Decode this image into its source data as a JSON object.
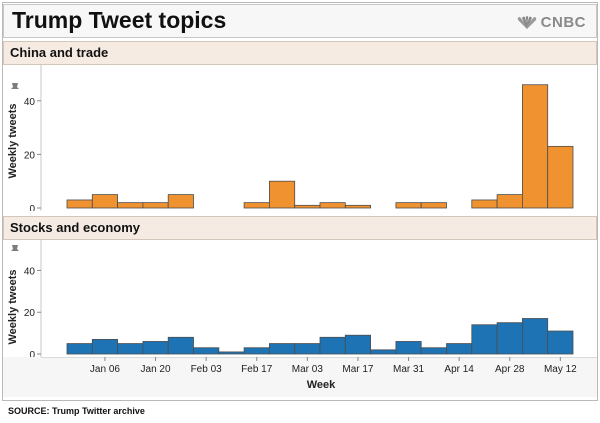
{
  "title": "Trump Tweet topics",
  "brand": "CNBC",
  "source": "SOURCE: Trump Twitter archive",
  "colors": {
    "china": "#f09230",
    "stocks": "#1d73b3",
    "bar_edge": "#4d4d4d"
  },
  "icons": {
    "logo": "peacock-icon",
    "pin": "pushpin-icon"
  },
  "chart_data": [
    {
      "type": "bar",
      "title": "China and trade",
      "xlabel": "Week",
      "ylabel": "Weekly tweets",
      "ylim": [
        0,
        50
      ],
      "yticks": [
        0,
        20,
        40
      ],
      "x_start": "Dec 30",
      "week_tick_labels": [
        "Jan 06",
        "Jan 20",
        "Feb 03",
        "Feb 17",
        "Mar 03",
        "Mar 17",
        "Mar 31",
        "Apr 14",
        "Apr 28",
        "May 12"
      ],
      "values": [
        3,
        5,
        2,
        2,
        5,
        0,
        0,
        2,
        10,
        1,
        2,
        1,
        0,
        2,
        2,
        0,
        3,
        5,
        46,
        23
      ],
      "color": "#f09230"
    },
    {
      "type": "bar",
      "title": "Stocks and economy",
      "xlabel": "Week",
      "ylabel": "Weekly tweets",
      "ylim": [
        0,
        45
      ],
      "yticks": [
        0,
        20,
        40
      ],
      "x_start": "Dec 30",
      "week_tick_labels": [
        "Jan 06",
        "Jan 20",
        "Feb 03",
        "Feb 17",
        "Mar 03",
        "Mar 17",
        "Mar 31",
        "Apr 14",
        "Apr 28",
        "May 12"
      ],
      "values": [
        5,
        7,
        5,
        6,
        8,
        3,
        1,
        3,
        5,
        5,
        8,
        9,
        2,
        6,
        3,
        5,
        14,
        15,
        17,
        11
      ],
      "color": "#1d73b3"
    }
  ]
}
